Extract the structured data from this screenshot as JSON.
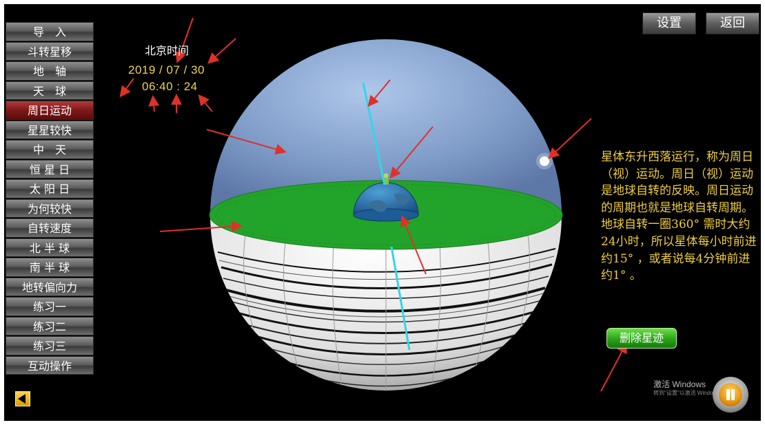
{
  "menu": {
    "items": [
      {
        "label": "导　入",
        "active": false
      },
      {
        "label": "斗转星移",
        "active": false
      },
      {
        "label": "地　轴",
        "active": false
      },
      {
        "label": "天　球",
        "active": false
      },
      {
        "label": "周日运动",
        "active": true
      },
      {
        "label": "星星较快",
        "active": false
      },
      {
        "label": "中　天",
        "active": false
      },
      {
        "label": "恒 星 日",
        "active": false
      },
      {
        "label": "太 阳 日",
        "active": false
      },
      {
        "label": "为何较快",
        "active": false
      },
      {
        "label": "自转速度",
        "active": false
      },
      {
        "label": "北 半 球",
        "active": false
      },
      {
        "label": "南 半 球",
        "active": false
      },
      {
        "label": "地转偏向力",
        "active": false
      },
      {
        "label": "练习一",
        "active": false
      },
      {
        "label": "练习二",
        "active": false
      },
      {
        "label": "练习三",
        "active": false
      },
      {
        "label": "互动操作",
        "active": false
      }
    ],
    "back_icon": "back-arrow-icon"
  },
  "toolbar": {
    "settings_label": "设置",
    "return_label": "返回"
  },
  "clock": {
    "label": "北京时间",
    "date": "2019 / 07 / 30",
    "time": "06:40 : 24"
  },
  "description": {
    "text": "星体东升西落运行，称为周日（视）运动。周日（视）运动是地球自转的反映。周日运动的周期也就是地球自转周期。地球自转一圈360° 需时大约24小时，所以星体每小时前进约15° ，或者说每4分钟前进约1° 。"
  },
  "actions": {
    "delete_trails_label": "删除星迹"
  },
  "watermark": {
    "title": "激活 Windows",
    "subtitle": "转到\"设置\"以激活 Windows。"
  },
  "colors": {
    "accent_text": "#f0cf3a",
    "active_menu": "#8b1c1c",
    "horizon": "#22a329",
    "axis": "#2fd7e8",
    "annotation_arrow": "#e0302a"
  },
  "icons": {
    "pause": "pause-icon"
  }
}
